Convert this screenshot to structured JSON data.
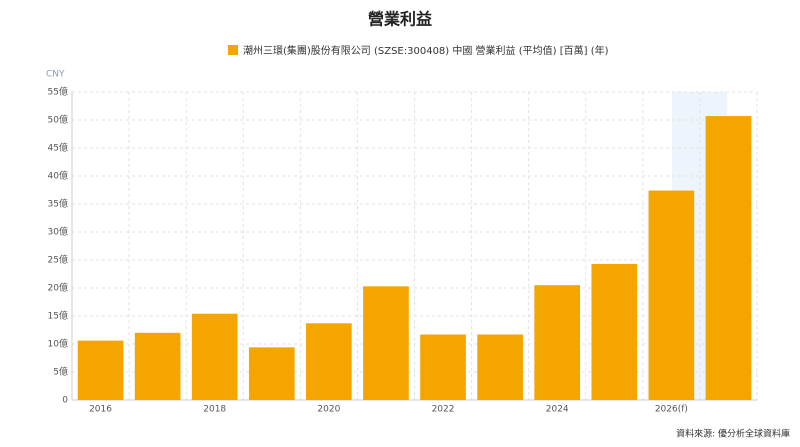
{
  "chart_data": {
    "type": "bar",
    "title": "營業利益",
    "legend": "潮州三環(集團)股份有限公司 (SZSE:300408) 中國 營業利益 (平均值) [百萬] (年)",
    "y_unit": "CNY",
    "source": "資料來源: 優分析全球資料庫",
    "categories": [
      "2016",
      null,
      "2018",
      null,
      "2020",
      null,
      "2022",
      null,
      "2024",
      null,
      "2026(f)",
      null
    ],
    "values": [
      10.6,
      12.0,
      15.4,
      9.4,
      13.7,
      20.3,
      11.7,
      11.7,
      20.5,
      24.3,
      37.4,
      50.7
    ],
    "color": "#f5a500",
    "ylim": [
      0,
      55
    ],
    "yticks": [
      0,
      {
        "value": 5,
        "label": "5億"
      },
      {
        "value": 10,
        "label": "10億"
      },
      {
        "value": 15,
        "label": "15億"
      },
      {
        "value": 20,
        "label": "20億"
      },
      {
        "value": 25,
        "label": "25億"
      },
      {
        "value": 30,
        "label": "30億"
      },
      {
        "value": 35,
        "label": "35億"
      },
      {
        "value": 40,
        "label": "40億"
      },
      {
        "value": 45,
        "label": "45億"
      },
      {
        "value": 50,
        "label": "50億"
      },
      {
        "value": 55,
        "label": "55億"
      }
    ],
    "grid": true
  }
}
